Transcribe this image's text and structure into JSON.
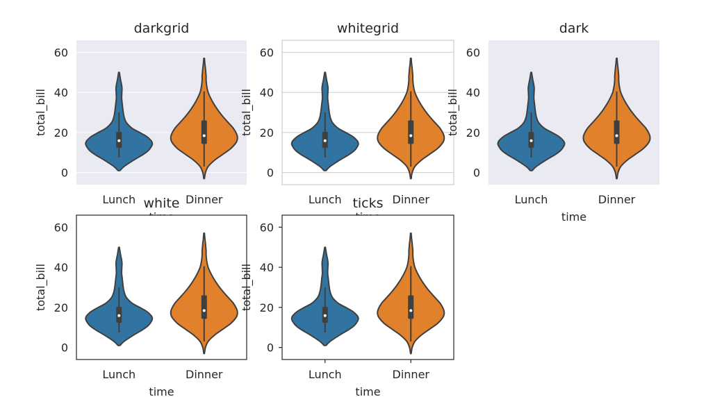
{
  "colors": {
    "lunch": "#3274a1",
    "dinner": "#e1812c",
    "outline": "#3f3f3f",
    "dark_bg": "#eaeaf2",
    "grid_on_dark": "#ffffff",
    "grid_on_white": "#cccccc",
    "spine_white": "#cccccc",
    "spine_black": "#262626"
  },
  "chart_data": [
    {
      "type": "violin",
      "title": "darkgrid",
      "style": "darkgrid",
      "xlabel": "time",
      "ylabel": "total_bill",
      "ylim": [
        -6,
        66
      ],
      "yticks": [
        0,
        20,
        40,
        60
      ],
      "grid": true,
      "categories": [
        "Lunch",
        "Dinner"
      ]
    },
    {
      "type": "violin",
      "title": "whitegrid",
      "style": "whitegrid",
      "xlabel": "time",
      "ylabel": "total_bill",
      "ylim": [
        -6,
        66
      ],
      "yticks": [
        0,
        20,
        40,
        60
      ],
      "grid": true,
      "categories": [
        "Lunch",
        "Dinner"
      ]
    },
    {
      "type": "violin",
      "title": "dark",
      "style": "dark",
      "xlabel": "time",
      "ylabel": "total_bill",
      "ylim": [
        -6,
        66
      ],
      "yticks": [
        0,
        20,
        40,
        60
      ],
      "grid": false,
      "categories": [
        "Lunch",
        "Dinner"
      ]
    },
    {
      "type": "violin",
      "title": "white",
      "style": "white",
      "xlabel": "time",
      "ylabel": "total_bill",
      "ylim": [
        -6,
        66
      ],
      "yticks": [
        0,
        20,
        40,
        60
      ],
      "grid": false,
      "categories": [
        "Lunch",
        "Dinner"
      ]
    },
    {
      "type": "violin",
      "title": "ticks",
      "style": "ticks",
      "xlabel": "time",
      "ylabel": "total_bill",
      "ylim": [
        -6,
        66
      ],
      "yticks": [
        0,
        20,
        40,
        60
      ],
      "grid": false,
      "categories": [
        "Lunch",
        "Dinner"
      ]
    }
  ],
  "distributions": [
    {
      "category": "Lunch",
      "color_key": "lunch",
      "min": 1,
      "max": 50,
      "q1": 12.3,
      "median": 15.9,
      "q3": 20.3,
      "whisker_low": 7.5,
      "whisker_high": 30,
      "density": [
        [
          1,
          0.03
        ],
        [
          3,
          0.15
        ],
        [
          6,
          0.42
        ],
        [
          9,
          0.72
        ],
        [
          11,
          0.88
        ],
        [
          13,
          0.97
        ],
        [
          14.5,
          1.0
        ],
        [
          16,
          0.96
        ],
        [
          18,
          0.83
        ],
        [
          20,
          0.62
        ],
        [
          22,
          0.4
        ],
        [
          25,
          0.22
        ],
        [
          28,
          0.15
        ],
        [
          31,
          0.12
        ],
        [
          34,
          0.1
        ],
        [
          37,
          0.08
        ],
        [
          40,
          0.085
        ],
        [
          42,
          0.09
        ],
        [
          44,
          0.075
        ],
        [
          46,
          0.05
        ],
        [
          48,
          0.03
        ],
        [
          50,
          0.01
        ]
      ]
    },
    {
      "category": "Dinner",
      "color_key": "dinner",
      "min": -3,
      "max": 57,
      "q1": 14.3,
      "median": 18.4,
      "q3": 26,
      "whisker_low": 3,
      "whisker_high": 40.5,
      "density": [
        [
          -3,
          0.01
        ],
        [
          0,
          0.04
        ],
        [
          3,
          0.12
        ],
        [
          6,
          0.3
        ],
        [
          9,
          0.55
        ],
        [
          12,
          0.8
        ],
        [
          15,
          0.96
        ],
        [
          17,
          1.0
        ],
        [
          19,
          0.98
        ],
        [
          22,
          0.88
        ],
        [
          25,
          0.72
        ],
        [
          28,
          0.56
        ],
        [
          31,
          0.42
        ],
        [
          34,
          0.3
        ],
        [
          37,
          0.2
        ],
        [
          40,
          0.12
        ],
        [
          43,
          0.08
        ],
        [
          46,
          0.06
        ],
        [
          48,
          0.06
        ],
        [
          50,
          0.05
        ],
        [
          52,
          0.04
        ],
        [
          54,
          0.025
        ],
        [
          57,
          0.01
        ]
      ]
    }
  ]
}
